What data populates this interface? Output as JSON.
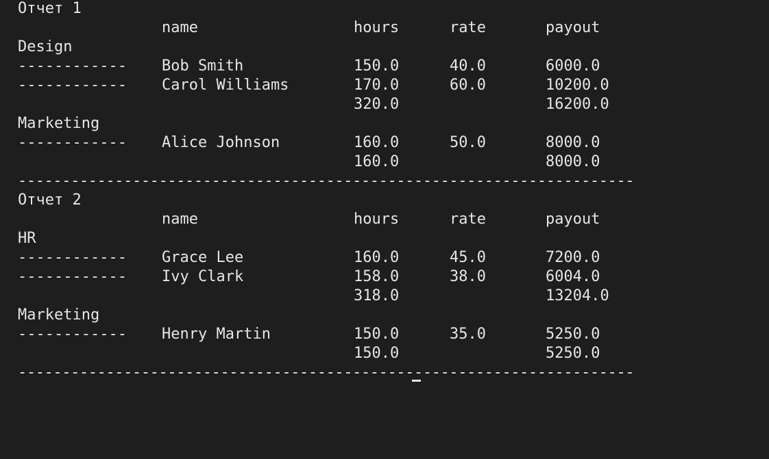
{
  "terminal": {
    "reports": [
      {
        "title": "Отчет 1",
        "headers": {
          "name": "name",
          "hours": "hours",
          "rate": "rate",
          "payout": "payout"
        },
        "groups": [
          {
            "department": "Design",
            "rows": [
              {
                "sep": "------------",
                "name": "Bob Smith",
                "hours": "150.0",
                "rate": "40.0",
                "payout": "6000.0"
              },
              {
                "sep": "------------",
                "name": "Carol Williams",
                "hours": "170.0",
                "rate": "60.0",
                "payout": "10200.0"
              }
            ],
            "total": {
              "hours": "320.0",
              "payout": "16200.0"
            }
          },
          {
            "department": "Marketing",
            "rows": [
              {
                "sep": "------------",
                "name": "Alice Johnson",
                "hours": "160.0",
                "rate": "50.0",
                "payout": "8000.0"
              }
            ],
            "total": {
              "hours": "160.0",
              "payout": "8000.0"
            }
          }
        ],
        "rule": "----------------------------------------------------------------------"
      },
      {
        "title": "Отчет 2",
        "headers": {
          "name": "name",
          "hours": "hours",
          "rate": "rate",
          "payout": "payout"
        },
        "groups": [
          {
            "department": "HR",
            "rows": [
              {
                "sep": "------------",
                "name": "Grace Lee",
                "hours": "160.0",
                "rate": "45.0",
                "payout": "7200.0"
              },
              {
                "sep": "------------",
                "name": "Ivy Clark",
                "hours": "158.0",
                "rate": "38.0",
                "payout": "6004.0"
              }
            ],
            "total": {
              "hours": "318.0",
              "payout": "13204.0"
            }
          },
          {
            "department": "Marketing",
            "rows": [
              {
                "sep": "------------",
                "name": "Henry Martin",
                "hours": "150.0",
                "rate": "35.0",
                "payout": "5250.0"
              }
            ],
            "total": {
              "hours": "150.0",
              "payout": "5250.0"
            }
          }
        ],
        "rule": "----------------------------------------------------------------------"
      }
    ]
  }
}
